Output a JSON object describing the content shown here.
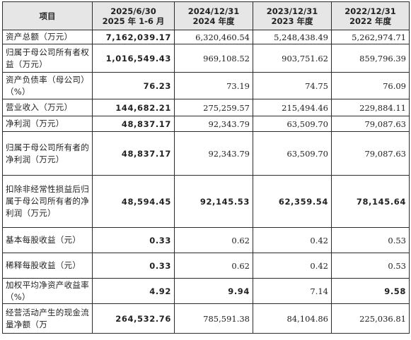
{
  "table": {
    "headers": [
      {
        "l1": "项目",
        "l2": ""
      },
      {
        "l1": "2025/6/30",
        "l2": "2025 年 1-6 月"
      },
      {
        "l1": "2024/12/31",
        "l2": "2024 年度"
      },
      {
        "l1": "2023/12/31",
        "l2": "2023 年度"
      },
      {
        "l1": "2022/12/31",
        "l2": "2022 年度"
      }
    ],
    "rows": [
      {
        "label": "资产总额（万元）",
        "values": [
          "7,162,039.17",
          "6,320,460.54",
          "5,248,438.49",
          "5,262,974.71"
        ],
        "bold": [
          true,
          false,
          false,
          false
        ]
      },
      {
        "label": "归属于母公司所有者权益（万元）",
        "values": [
          "1,016,549.43",
          "969,108.52",
          "903,751.62",
          "859,796.39"
        ],
        "bold": [
          true,
          false,
          false,
          false
        ]
      },
      {
        "label": "资产负债率（母公司）（%）",
        "values": [
          "76.23",
          "73.19",
          "74.75",
          "76.09"
        ],
        "bold": [
          true,
          false,
          false,
          false
        ]
      },
      {
        "label": "营业收入（万元）",
        "values": [
          "144,682.21",
          "275,259.57",
          "215,494.46",
          "229,884.11"
        ],
        "bold": [
          true,
          false,
          false,
          false
        ]
      },
      {
        "label": "净利润（万元）",
        "values": [
          "48,837.17",
          "92,343.79",
          "63,509.70",
          "79,087.63"
        ],
        "bold": [
          true,
          false,
          false,
          false
        ]
      },
      {
        "label": "归属于母公司所有者的净利润（万元）",
        "values": [
          "48,837.17",
          "92,343.79",
          "63,509.70",
          "79,087.63"
        ],
        "bold": [
          true,
          false,
          false,
          false
        ]
      },
      {
        "label": "扣除非经常性损益后归属于母公司所有者的净利润（万元）",
        "values": [
          "48,594.45",
          "92,145.53",
          "62,359.54",
          "78,145.64"
        ],
        "bold": [
          true,
          true,
          true,
          true
        ]
      },
      {
        "label": "基本每股收益（元）",
        "values": [
          "0.33",
          "0.62",
          "0.42",
          "0.53"
        ],
        "bold": [
          true,
          false,
          false,
          false
        ]
      },
      {
        "label": "稀释每股收益（元）",
        "values": [
          "0.33",
          "0.62",
          "0.42",
          "0.53"
        ],
        "bold": [
          true,
          false,
          false,
          false
        ]
      },
      {
        "label": "加权平均净资产收益率（%）",
        "values": [
          "4.92",
          "9.94",
          "7.14",
          "9.58"
        ],
        "bold": [
          true,
          true,
          false,
          true
        ]
      },
      {
        "label": "经营活动产生的现金流量净额（万",
        "values": [
          "264,532.76",
          "785,591.38",
          "84,104.86",
          "225,036.81"
        ],
        "bold": [
          true,
          false,
          false,
          false
        ]
      }
    ]
  }
}
